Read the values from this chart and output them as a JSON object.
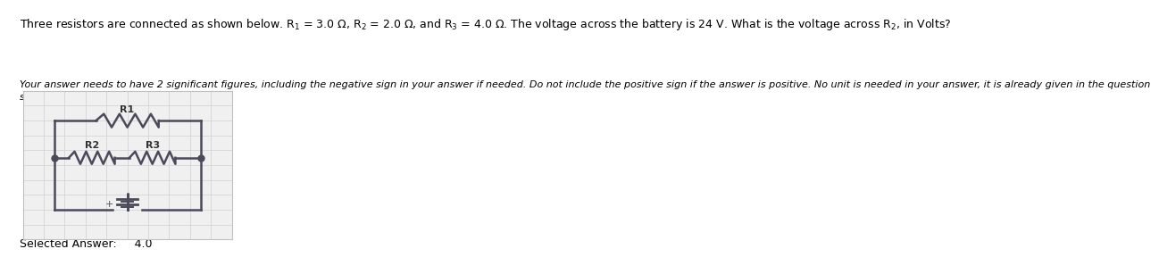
{
  "title": "Three resistors are connected as shown below. R$_1$ = 3.0 Ω, R$_2$ = 2.0 Ω, and R$_3$ = 4.0 Ω. The voltage across the battery is 24 V. What is the voltage across R$_2$, in Volts?",
  "subtitle": "Your answer needs to have 2 significant figures, including the negative sign in your answer if needed. Do not include the positive sign if the answer is positive. No unit is needed in your answer, it is already given in the question\nstatement.",
  "selected_label": "Selected Answer:",
  "selected_value": "4.0",
  "bg_color": "#ffffff",
  "text_color": "#000000",
  "circuit_bg": "#f0f0f0",
  "grid_color": "#d0d0d0",
  "wire_color": "#4a4a5a",
  "font_size_title": 9.0,
  "font_size_subtitle": 8.0,
  "font_size_answer": 9.0
}
